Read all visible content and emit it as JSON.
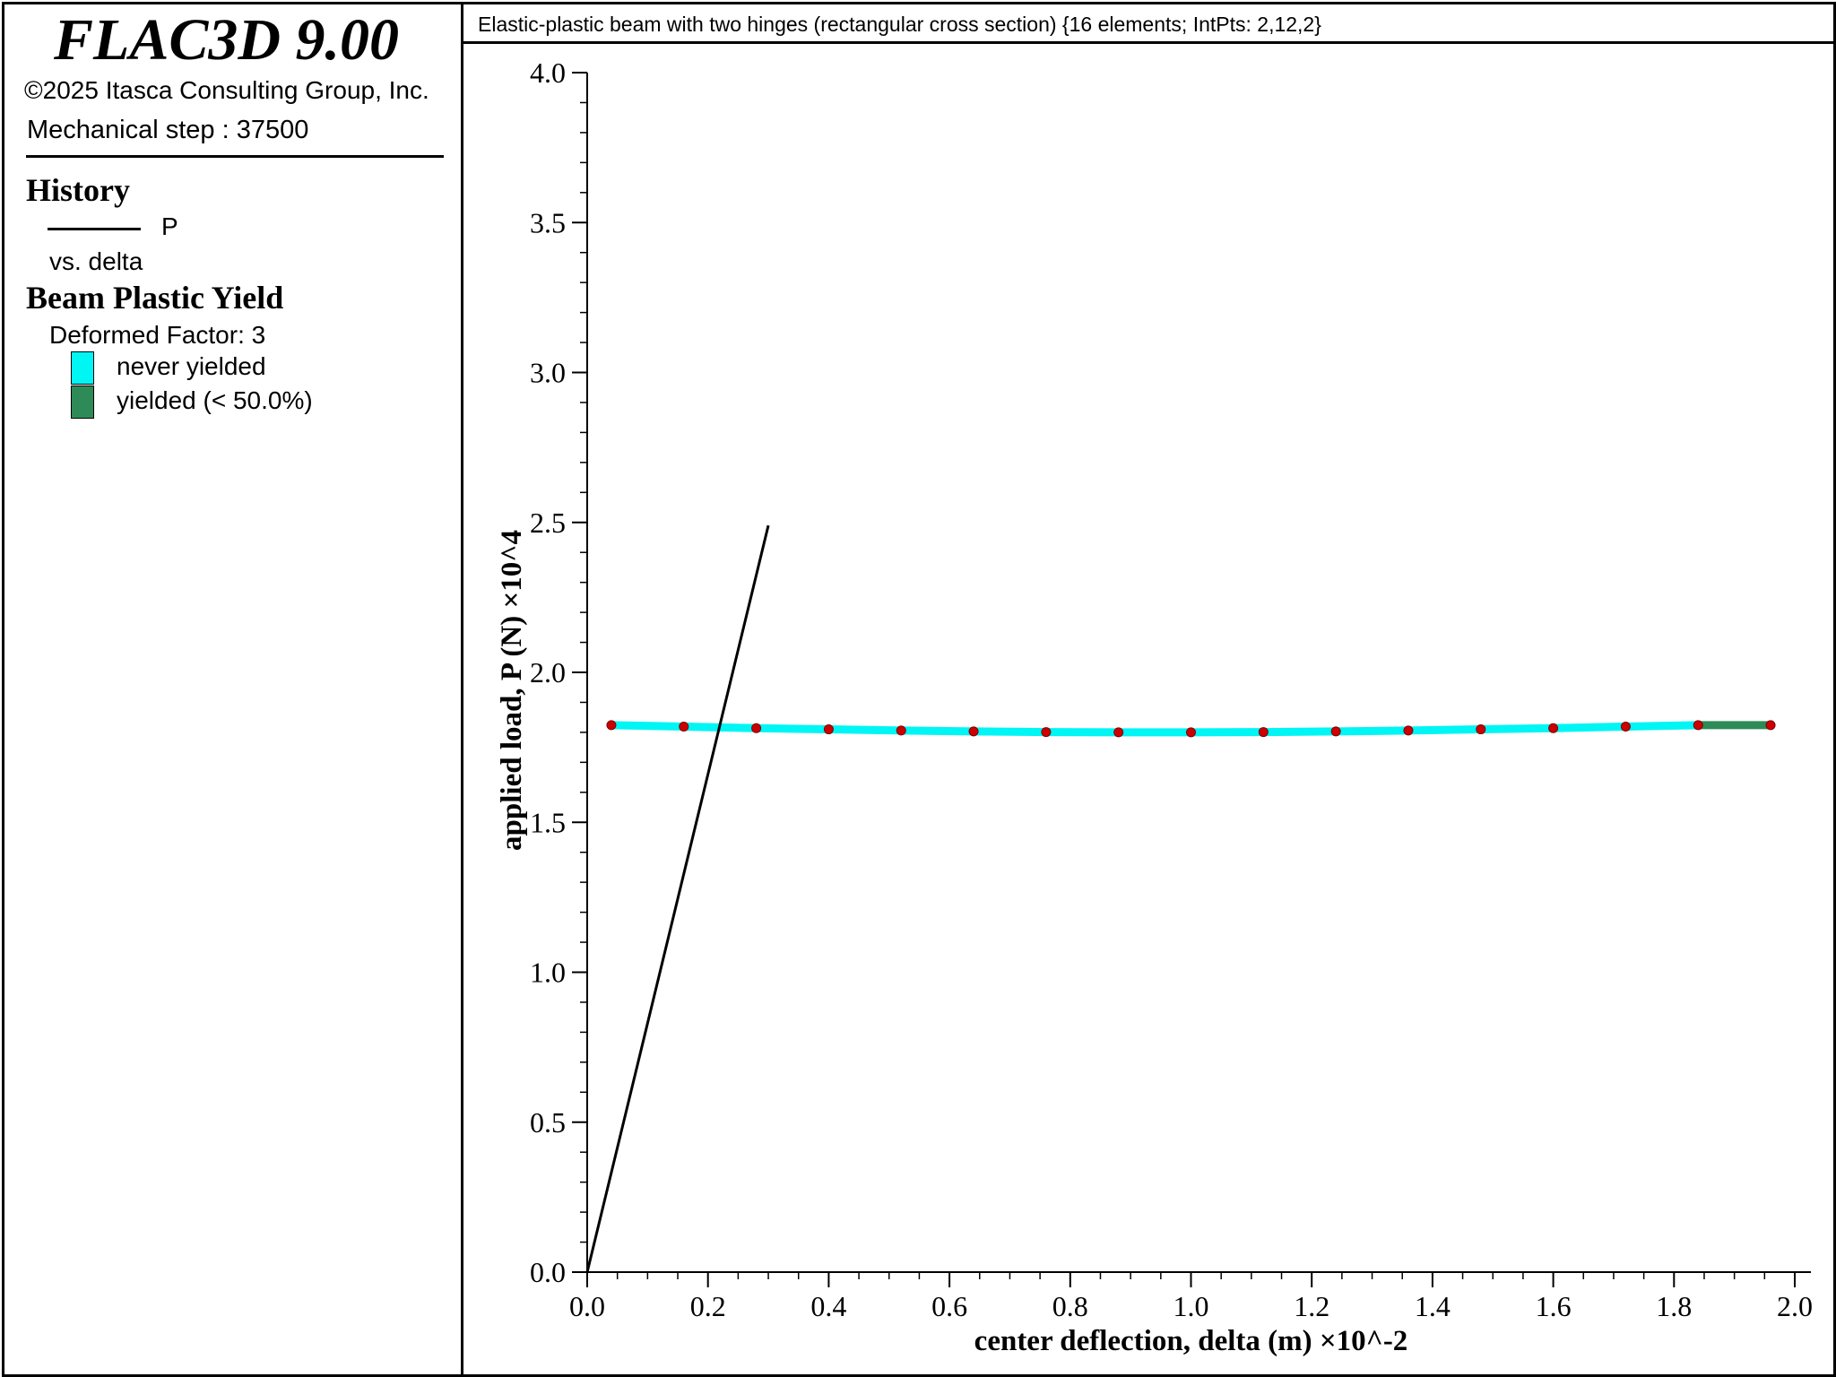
{
  "legend": {
    "app_title": "FLAC3D 9.00",
    "copyright": "©2025 Itasca Consulting Group, Inc.",
    "step": "Mechanical step : 37500",
    "history_heading": "History",
    "history_series": "P",
    "history_vs": "vs. delta",
    "yield_heading": "Beam Plastic Yield",
    "deformed_factor": "Deformed Factor: 3",
    "items": [
      {
        "label": "never yielded",
        "color": "#00f5f5"
      },
      {
        "label": "yielded (< 50.0%)",
        "color": "#2e8b57"
      }
    ]
  },
  "plot": {
    "title": "Elastic-plastic beam with two hinges (rectangular cross section) {16 elements; IntPts: 2,12,2}"
  },
  "chart_data": {
    "type": "line",
    "xlabel": "center deflection, delta (m) ×10^-2",
    "ylabel": "applied load, P (N) ×10^4",
    "xlim": [
      0.0,
      2.0
    ],
    "ylim": [
      0.0,
      4.0
    ],
    "x_ticks": [
      "0.0",
      "0.2",
      "0.4",
      "0.6",
      "0.8",
      "1.0",
      "1.2",
      "1.4",
      "1.6",
      "1.8",
      "2.0"
    ],
    "y_ticks": [
      "0.0",
      "0.5",
      "1.0",
      "1.5",
      "2.0",
      "2.5",
      "3.0",
      "3.5",
      "4.0"
    ],
    "grid": false,
    "series": [
      {
        "name": "P",
        "color": "#000000",
        "x": [
          0.0,
          0.3
        ],
        "y": [
          0.0,
          2.49
        ]
      }
    ],
    "beam_overlay": {
      "never_yielded_color": "#00f5f5",
      "yielded_color": "#2e8b57",
      "node_color": "#cc0000",
      "nodes": [
        {
          "x": 0.04,
          "y": 1.824
        },
        {
          "x": 0.16,
          "y": 1.819
        },
        {
          "x": 0.28,
          "y": 1.814
        },
        {
          "x": 0.4,
          "y": 1.81
        },
        {
          "x": 0.52,
          "y": 1.806
        },
        {
          "x": 0.64,
          "y": 1.803
        },
        {
          "x": 0.76,
          "y": 1.801
        },
        {
          "x": 0.88,
          "y": 1.8
        },
        {
          "x": 1.0,
          "y": 1.8
        },
        {
          "x": 1.12,
          "y": 1.801
        },
        {
          "x": 1.24,
          "y": 1.803
        },
        {
          "x": 1.36,
          "y": 1.806
        },
        {
          "x": 1.48,
          "y": 1.81
        },
        {
          "x": 1.6,
          "y": 1.814
        },
        {
          "x": 1.72,
          "y": 1.819
        },
        {
          "x": 1.84,
          "y": 1.824
        },
        {
          "x": 1.96,
          "y": 1.824
        }
      ],
      "segment_states": [
        "never",
        "never",
        "never",
        "never",
        "never",
        "never",
        "never",
        "never",
        "never",
        "never",
        "never",
        "never",
        "never",
        "never",
        "never",
        "yielded"
      ]
    }
  }
}
